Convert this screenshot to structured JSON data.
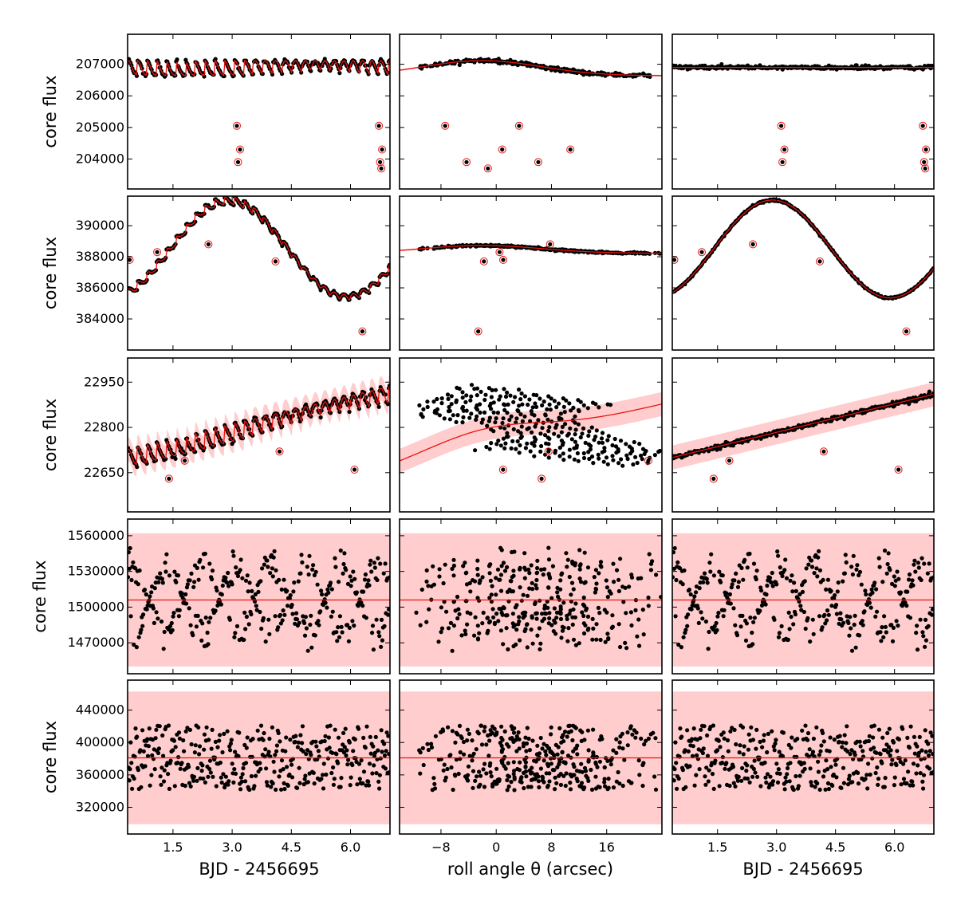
{
  "figure": {
    "ylabel": "core flux",
    "xlabel_time": "BJD - 2456695",
    "xlabel_roll": "roll angle θ (arcsec)"
  },
  "colors": {
    "model": "#e8140f",
    "band": "#ffbcbc",
    "point": "#000000",
    "outlier_ring": "#e8140f"
  },
  "chart_data": {
    "type": "scatter",
    "columns": [
      {
        "kind": "time",
        "xlim": [
          0.35,
          7.0
        ],
        "ticks": [
          1.5,
          3.0,
          4.5,
          6.0
        ],
        "tick_labels": [
          "1.5",
          "3.0",
          "4.5",
          "6.0"
        ],
        "xlabel": "BJD - 2456695"
      },
      {
        "kind": "roll",
        "xlim": [
          -14,
          24
        ],
        "ticks": [
          -8,
          0,
          8,
          16
        ],
        "tick_labels": [
          "−8",
          "0",
          "8",
          "16"
        ],
        "xlabel": "roll angle θ (arcsec)"
      },
      {
        "kind": "time",
        "xlim": [
          0.35,
          7.0
        ],
        "ticks": [
          1.5,
          3.0,
          4.5,
          6.0
        ],
        "tick_labels": [
          "1.5",
          "3.0",
          "4.5",
          "6.0"
        ],
        "xlabel": "BJD - 2456695"
      }
    ],
    "rows": [
      {
        "ylabel": "core flux",
        "ylim": [
          203050,
          207950
        ],
        "yticks": [
          204000,
          205000,
          206000,
          207000
        ],
        "ytick_labels": [
          "204000",
          "205000",
          "206000",
          "207000"
        ],
        "model": {
          "base": 206900,
          "star_amp": 0,
          "roll_amp": 480,
          "trend": 0,
          "roll_shape": "bump",
          "band": 30
        },
        "points_per_panel": 300,
        "outliers": [
          3.15,
          203900,
          3.2,
          204300,
          3.12,
          205050,
          6.72,
          205050,
          6.8,
          204300,
          6.78,
          203700,
          6.75,
          203900
        ]
      },
      {
        "ylabel": "core flux",
        "ylim": [
          382000,
          391900
        ],
        "yticks": [
          384000,
          386000,
          388000,
          390000
        ],
        "ytick_labels": [
          "384000",
          "386000",
          "388000",
          "390000"
        ],
        "model": {
          "base": 388500,
          "star_amp": 3500,
          "roll_amp": 500,
          "trend": 0,
          "roll_shape": "bump",
          "band": 60
        },
        "points_per_panel": 320,
        "outliers": [
          0.4,
          387800,
          1.1,
          388300,
          2.4,
          388800,
          4.1,
          387700,
          6.3,
          383200
        ]
      },
      {
        "ylabel": "core flux",
        "ylim": [
          22520,
          23030
        ],
        "yticks": [
          22650,
          22800,
          22950
        ],
        "ytick_labels": [
          "22650",
          "22800",
          "22950"
        ],
        "model": {
          "base": 22700,
          "star_amp": 0,
          "roll_amp": 60,
          "trend": 210,
          "roll_shape": "bump",
          "band": 40
        },
        "points_per_panel": 320,
        "outliers": [
          1.4,
          22630,
          6.1,
          22660,
          1.8,
          22690,
          4.2,
          22720
        ]
      },
      {
        "ylabel": "core flux",
        "ylim": [
          1444000,
          1574000
        ],
        "yticks": [
          1470000,
          1500000,
          1530000,
          1560000
        ],
        "ytick_labels": [
          "1470000",
          "1500000",
          "1530000",
          "1560000"
        ],
        "model": {
          "base": 1506000,
          "star_amp": 0,
          "roll_amp": 0,
          "trend": 0,
          "roll_shape": "flat",
          "band": 56000
        },
        "signal": {
          "type": "sinusoid_envelope",
          "amp": 45000,
          "period": 1.78
        },
        "points_per_panel": 360,
        "outliers": []
      },
      {
        "ylabel": "core flux",
        "ylim": [
          287000,
          477000
        ],
        "yticks": [
          320000,
          360000,
          400000,
          440000
        ],
        "ytick_labels": [
          "320000",
          "360000",
          "400000",
          "440000"
        ],
        "model": {
          "base": 381000,
          "star_amp": 0,
          "roll_amp": 0,
          "trend": 0,
          "roll_shape": "flat",
          "band": 82000
        },
        "signal": {
          "type": "uniform",
          "amp": 40000
        },
        "points_per_panel": 380,
        "outliers": []
      }
    ]
  }
}
